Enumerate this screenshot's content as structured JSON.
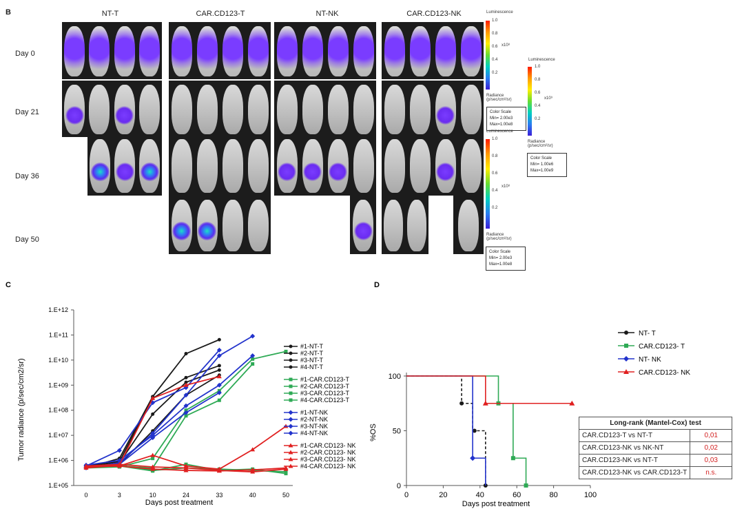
{
  "panel_b": {
    "letter": "B",
    "columns": [
      "NT-T",
      "CAR.CD123-T",
      "NT-NK",
      "CAR.CD123-NK"
    ],
    "rows": [
      "Day 0",
      "Day 21",
      "Day 36",
      "Day 50"
    ],
    "colorbar_top": {
      "title": "Luminescence",
      "ticks": [
        "1.0",
        "0.8",
        "0.6",
        "0.4",
        "0.2"
      ],
      "multiplier": "x10⁸",
      "units": "Radiance\n(p/sec/cm²/sr)",
      "scale_title": "Color Scale",
      "scale_min": "Min= 2.00e3",
      "scale_max": "Max=1.00e8"
    },
    "colorbar_mid": {
      "title": "Luminescence",
      "ticks": [
        "1.0",
        "0.8",
        "0.6",
        "0.4",
        "0.2"
      ],
      "multiplier": "x10⁹",
      "units": "Radiance\n(p/sec/cm²/sr)",
      "scale_title": "Color Scale",
      "scale_min": "Min= 1.00e6",
      "scale_max": "Max=1.00e9"
    },
    "colorbar_bottom": {
      "title": "Luminescence",
      "ticks": [
        "1.0",
        "0.8",
        "0.6",
        "0.4",
        "0.2"
      ],
      "multiplier": "x10⁸",
      "units": "Radiance\n(p/sec/cm²/sr)",
      "scale_title": "Color Scale",
      "scale_min": "Min= 2.00e3",
      "scale_max": "Max=1.00e8"
    }
  },
  "colors": {
    "black": "#1a1a1a",
    "green": "#2eaa55",
    "blue": "#2233cc",
    "red": "#e02020"
  },
  "chart_data": [
    {
      "panel": "C",
      "type": "line",
      "ylabel": "Tumor radiance (p/sec/cm2/sr)",
      "xlabel": "Days post treatment",
      "x_categories": [
        "0",
        "3",
        "10",
        "24",
        "33",
        "40",
        "50"
      ],
      "y_scale": "log",
      "y_ticks": [
        "1.E+05",
        "1.E+06",
        "1.E+07",
        "1.E+08",
        "1.E+09",
        "1.E+10",
        "1.E+11",
        "1.E+12"
      ],
      "series": [
        {
          "name": "#1-NT-T",
          "group": "black",
          "marker": "circle",
          "values": [
            500000.0,
            1200000.0,
            350000000.0,
            18000000000.0,
            65000000000.0,
            null,
            null
          ]
        },
        {
          "name": "#2-NT-T",
          "group": "black",
          "marker": "circle",
          "values": [
            600000.0,
            900000.0,
            300000000.0,
            2000000000.0,
            6000000000.0,
            null,
            null
          ]
        },
        {
          "name": "#3-NT-T",
          "group": "black",
          "marker": "circle",
          "values": [
            550000.0,
            800000.0,
            70000000.0,
            1300000000.0,
            4000000000.0,
            null,
            null
          ]
        },
        {
          "name": "#4-NT-T",
          "group": "black",
          "marker": "circle",
          "values": [
            500000.0,
            700000.0,
            15000000.0,
            400000000.0,
            2500000000.0,
            null,
            null
          ]
        },
        {
          "name": "#1-CAR.CD123-T",
          "group": "green",
          "marker": "square",
          "values": [
            550000.0,
            650000.0,
            400000.0,
            500000.0,
            450000.0,
            400000.0,
            350000.0
          ]
        },
        {
          "name": "#2-CAR.CD123-T",
          "group": "green",
          "marker": "square",
          "values": [
            600000.0,
            600000.0,
            380000.0,
            700000.0,
            400000.0,
            450000.0,
            300000.0
          ]
        },
        {
          "name": "#3-CAR.CD123-T",
          "group": "green",
          "marker": "square",
          "values": [
            500000.0,
            550000.0,
            1200000.0,
            100000000.0,
            600000000.0,
            11000000000.0,
            22000000000.0
          ]
        },
        {
          "name": "#4-CAR.CD123-T",
          "group": "green",
          "marker": "square",
          "values": [
            550000.0,
            600000.0,
            500000.0,
            60000000.0,
            250000000.0,
            7000000000.0,
            null
          ]
        },
        {
          "name": "#1-NT-NK",
          "group": "blue",
          "marker": "diamond",
          "values": [
            600000.0,
            2500000.0,
            200000000.0,
            800000000.0,
            25000000000.0,
            null,
            null
          ]
        },
        {
          "name": "#2-NT-NK",
          "group": "blue",
          "marker": "diamond",
          "values": [
            500000.0,
            800000.0,
            12000000.0,
            400000000.0,
            15000000000.0,
            90000000000.0,
            null
          ]
        },
        {
          "name": "#3-NT-NK",
          "group": "blue",
          "marker": "diamond",
          "values": [
            650000.0,
            1000000.0,
            10000000.0,
            150000000.0,
            1000000000.0,
            15000000000.0,
            null
          ]
        },
        {
          "name": "#4-NT-NK",
          "group": "blue",
          "marker": "diamond",
          "values": [
            550000.0,
            700000.0,
            8000000.0,
            80000000.0,
            500000000.0,
            null,
            null
          ]
        },
        {
          "name": "#1-CAR.CD123- NK",
          "group": "red",
          "marker": "triangle",
          "values": [
            550000.0,
            600000.0,
            1600000.0,
            600000.0,
            450000.0,
            2700000.0,
            23000000.0
          ]
        },
        {
          "name": "#2-CAR.CD123- NK",
          "group": "red",
          "marker": "triangle",
          "values": [
            600000.0,
            700000.0,
            550000.0,
            500000.0,
            400000.0,
            350000.0,
            450000.0
          ]
        },
        {
          "name": "#3-CAR.CD123- NK",
          "group": "red",
          "marker": "triangle",
          "values": [
            500000.0,
            650000.0,
            300000000.0,
            1000000000.0,
            2200000000.0,
            null,
            null
          ]
        },
        {
          "name": "#4-CAR.CD123- NK",
          "group": "red",
          "marker": "triangle",
          "values": [
            550000.0,
            600000.0,
            450000.0,
            400000.0,
            380000.0,
            420000.0,
            500000.0
          ]
        }
      ]
    },
    {
      "panel": "D",
      "type": "line",
      "subtype": "kaplan-meier",
      "ylabel": "%OS",
      "xlabel": "Days post treatment",
      "xlim": [
        0,
        100
      ],
      "ylim": [
        0,
        100
      ],
      "x_ticks": [
        "0",
        "20",
        "40",
        "60",
        "80",
        "100"
      ],
      "y_ticks": [
        "0",
        "50",
        "100"
      ],
      "series": [
        {
          "name": "NT- T",
          "group": "black",
          "marker": "circle",
          "dashed": true,
          "steps": [
            [
              0,
              100
            ],
            [
              30,
              100
            ],
            [
              30,
              75
            ],
            [
              36,
              75
            ],
            [
              36,
              50
            ],
            [
              43,
              50
            ],
            [
              43,
              0
            ]
          ],
          "points": [
            [
              30,
              75
            ],
            [
              37,
              50
            ],
            [
              43,
              0
            ]
          ]
        },
        {
          "name": "CAR.CD123- T",
          "group": "green",
          "marker": "square",
          "steps": [
            [
              0,
              100
            ],
            [
              50,
              100
            ],
            [
              50,
              75
            ],
            [
              58,
              75
            ],
            [
              58,
              25
            ],
            [
              65,
              25
            ],
            [
              65,
              0
            ]
          ],
          "points": [
            [
              50,
              75
            ],
            [
              58,
              25
            ],
            [
              65,
              0
            ]
          ]
        },
        {
          "name": "NT- NK",
          "group": "blue",
          "marker": "diamond",
          "steps": [
            [
              0,
              100
            ],
            [
              36,
              100
            ],
            [
              36,
              25
            ],
            [
              43,
              25
            ],
            [
              43,
              0
            ]
          ],
          "points": [
            [
              36,
              25
            ]
          ]
        },
        {
          "name": "CAR.CD123- NK",
          "group": "red",
          "marker": "triangle",
          "steps": [
            [
              0,
              100
            ],
            [
              43,
              100
            ],
            [
              43,
              75
            ],
            [
              90,
              75
            ]
          ],
          "points": [
            [
              43,
              75
            ],
            [
              90,
              75
            ]
          ]
        }
      ],
      "stats_table": {
        "title": "Long-rank (Mantel-Cox) test",
        "rows": [
          {
            "comparison": "CAR.CD123-T vs NT-T",
            "p": "0,01"
          },
          {
            "comparison": "CAR.CD123-NK vs NK-NT",
            "p": "0,02"
          },
          {
            "comparison": "CAR.CD123-NK vs NT-T",
            "p": "0,03"
          },
          {
            "comparison": "CAR.CD123-NK vs CAR.CD123-T",
            "p": "n.s."
          }
        ]
      }
    }
  ]
}
